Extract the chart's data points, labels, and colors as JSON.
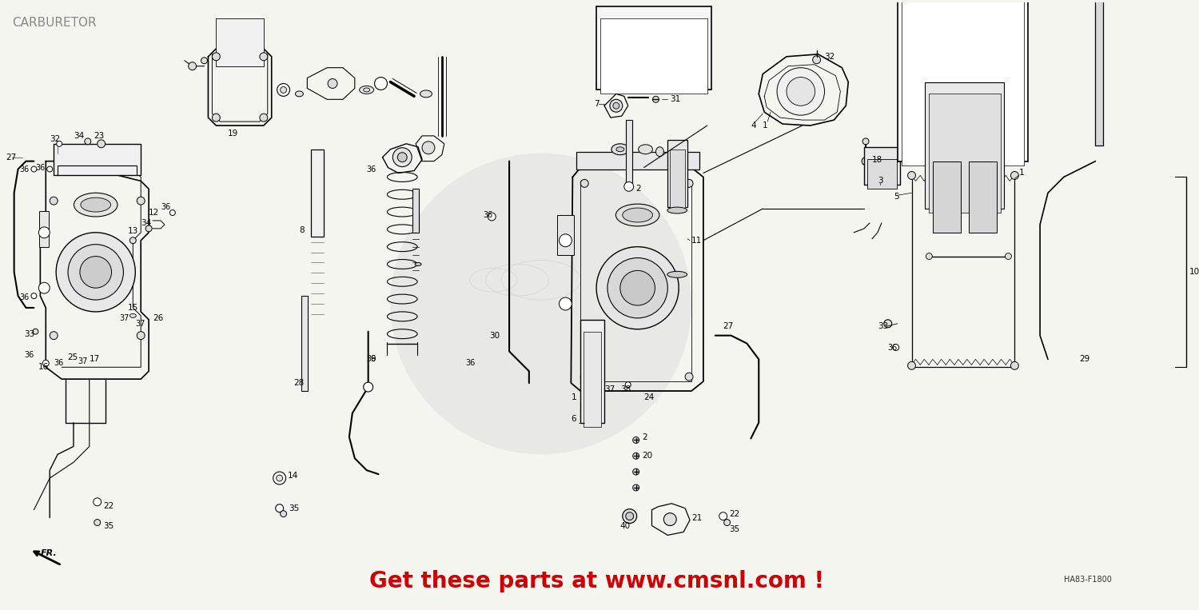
{
  "title": "CARBURETOR",
  "subtitle": "HA83-F1800",
  "watermark_text": "Get these parts at www.cmsnl.com !",
  "watermark_color": "#cc0000",
  "background_color": "#f5f5f0",
  "diagram_color": "#1a1a1a",
  "title_color": "#888888",
  "title_fontsize": 12,
  "watermark_fontsize": 20,
  "fig_width": 15.0,
  "fig_height": 7.63,
  "fr_label": "FR."
}
